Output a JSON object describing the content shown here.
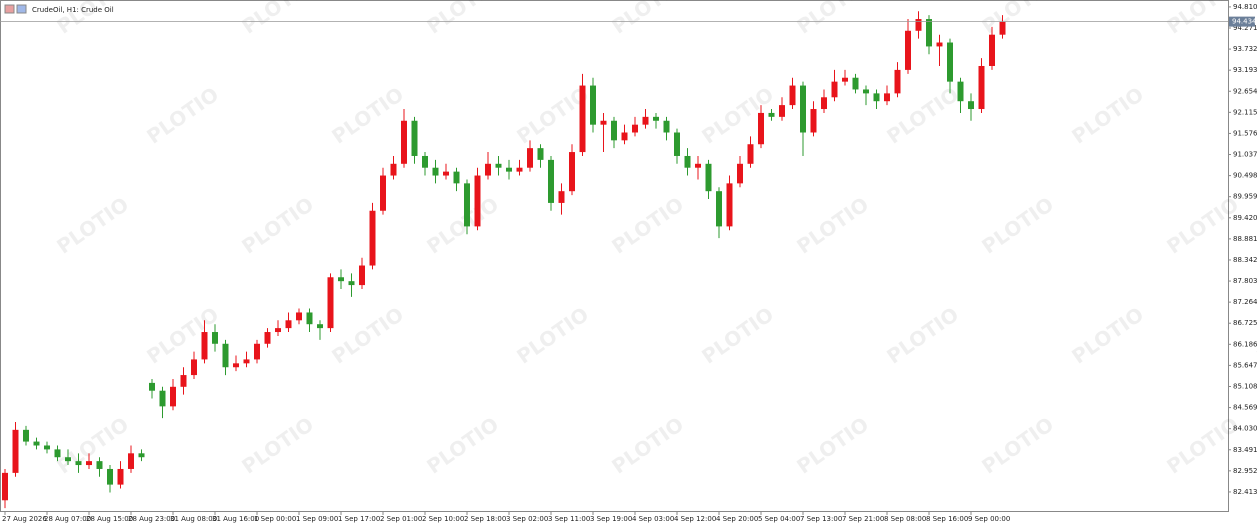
{
  "chart_data": {
    "type": "candlestick",
    "title": "CrudeOil, H1:  Crude Oil",
    "watermark": "PLOTIO",
    "up_color": "#e8141b",
    "down_color": "#2d9a2f",
    "ylim": [
      81.9,
      94.91
    ],
    "yticks": [
      {
        "value": 94.81,
        "label": "94.810"
      },
      94.271,
      93.732,
      93.193,
      92.654,
      92.115,
      91.576,
      91.037,
      90.498,
      89.959,
      {
        "value": 89.42,
        "label": "89.420"
      },
      88.881,
      88.342,
      87.803,
      87.264,
      86.725,
      86.186,
      85.647,
      85.108,
      84.569,
      {
        "value": 84.03,
        "label": "84.030"
      },
      83.491,
      82.952,
      82.413
    ],
    "last_price": 94.434,
    "categories": [
      "27 Aug 2026",
      null,
      null,
      null,
      "28 Aug 07:00",
      null,
      null,
      null,
      "28 Aug 15:00",
      null,
      null,
      null,
      "28 Aug 23:00",
      null,
      null,
      null,
      "31 Aug 08:00",
      null,
      null,
      null,
      "31 Aug 16:00",
      null,
      null,
      null,
      "1 Sep 00:00",
      null,
      null,
      null,
      "1 Sep 09:00",
      null,
      null,
      null,
      "1 Sep 17:00",
      null,
      null,
      null,
      "2 Sep 01:00",
      null,
      null,
      null,
      "2 Sep 10:00",
      null,
      null,
      null,
      "2 Sep 18:00",
      null,
      null,
      null,
      "3 Sep 02:00",
      null,
      null,
      null,
      "3 Sep 11:00",
      null,
      null,
      null,
      "3 Sep 19:00",
      null,
      null,
      null,
      "4 Sep 03:00",
      null,
      null,
      null,
      "4 Sep 12:00",
      null,
      null,
      null,
      "4 Sep 20:00",
      null,
      null,
      null,
      "5 Sep 04:00",
      null,
      null,
      null,
      "7 Sep 13:00",
      null,
      null,
      null,
      "7 Sep 21:00",
      null,
      null,
      null,
      "8 Sep 08:00",
      null,
      null,
      null,
      "8 Sep 16:00",
      null,
      null,
      null,
      "9 Sep 00:00",
      null,
      null,
      null
    ],
    "open": [
      82.2,
      82.9,
      84.0,
      83.7,
      83.6,
      83.5,
      83.3,
      83.2,
      83.1,
      83.2,
      83.0,
      82.6,
      83.0,
      83.4,
      85.2,
      85.0,
      84.6,
      85.1,
      85.4,
      85.8,
      86.5,
      86.2,
      85.6,
      85.7,
      85.8,
      86.2,
      86.5,
      86.6,
      86.8,
      87.0,
      86.7,
      86.6,
      87.9,
      87.8,
      87.7,
      88.2,
      89.6,
      90.5,
      90.8,
      91.9,
      91.0,
      90.7,
      90.5,
      90.6,
      90.3,
      89.2,
      90.5,
      90.8,
      90.7,
      90.6,
      90.7,
      91.2,
      90.9,
      89.8,
      90.1,
      91.1,
      92.8,
      91.8,
      91.9,
      91.4,
      91.6,
      91.8,
      92.0,
      91.9,
      91.6,
      91.0,
      90.7,
      90.8,
      90.1,
      89.2,
      90.3,
      90.8,
      91.3,
      92.1,
      92.0,
      92.3,
      92.8,
      91.6,
      92.2,
      92.5,
      92.9,
      93.0,
      92.7,
      92.6,
      92.4,
      92.6,
      93.2,
      94.2,
      94.5,
      93.8,
      93.9,
      92.9,
      92.4,
      92.2,
      93.3,
      94.1
    ],
    "high": [
      83.0,
      84.2,
      84.1,
      83.8,
      83.7,
      83.6,
      83.5,
      83.4,
      83.4,
      83.3,
      83.1,
      83.2,
      83.6,
      83.5,
      85.3,
      85.1,
      85.3,
      85.6,
      86.0,
      86.8,
      86.7,
      86.3,
      85.9,
      86.0,
      86.3,
      86.6,
      86.8,
      87.0,
      87.1,
      87.1,
      86.8,
      88.0,
      88.1,
      88.0,
      88.4,
      89.8,
      90.7,
      91.0,
      92.2,
      92.0,
      91.1,
      90.9,
      90.8,
      90.7,
      90.4,
      90.7,
      91.1,
      91.0,
      90.9,
      90.9,
      91.4,
      91.3,
      91.0,
      90.3,
      91.3,
      93.1,
      93.0,
      92.1,
      92.0,
      91.8,
      92.0,
      92.2,
      92.1,
      92.0,
      91.7,
      91.2,
      91.0,
      90.9,
      90.2,
      90.5,
      91.0,
      91.5,
      92.3,
      92.2,
      92.5,
      93.0,
      92.9,
      92.4,
      92.7,
      93.2,
      93.2,
      93.1,
      92.8,
      92.7,
      92.8,
      93.4,
      94.5,
      94.7,
      94.6,
      94.1,
      94.0,
      93.0,
      92.6,
      93.5,
      94.3,
      94.6
    ],
    "low": [
      82.0,
      82.8,
      83.6,
      83.5,
      83.4,
      83.2,
      83.1,
      82.9,
      83.0,
      82.8,
      82.4,
      82.5,
      82.9,
      83.2,
      84.8,
      84.3,
      84.5,
      84.9,
      85.3,
      85.7,
      86.0,
      85.4,
      85.5,
      85.6,
      85.7,
      86.1,
      86.4,
      86.5,
      86.7,
      86.5,
      86.3,
      86.5,
      87.6,
      87.4,
      87.6,
      88.1,
      89.5,
      90.4,
      90.7,
      90.8,
      90.5,
      90.3,
      90.4,
      90.1,
      89.0,
      89.1,
      90.4,
      90.5,
      90.4,
      90.5,
      90.6,
      90.7,
      89.6,
      89.5,
      90.0,
      91.0,
      91.6,
      91.1,
      91.2,
      91.3,
      91.5,
      91.7,
      91.7,
      91.4,
      90.8,
      90.5,
      90.4,
      89.9,
      88.9,
      89.1,
      90.2,
      90.7,
      91.2,
      91.9,
      91.9,
      92.2,
      91.0,
      91.5,
      92.1,
      92.4,
      92.8,
      92.6,
      92.3,
      92.2,
      92.3,
      92.5,
      93.1,
      94.0,
      93.6,
      93.3,
      92.6,
      92.1,
      91.9,
      92.1,
      93.2,
      94.0
    ],
    "close": [
      82.9,
      84.0,
      83.7,
      83.6,
      83.5,
      83.3,
      83.2,
      83.1,
      83.2,
      83.0,
      82.6,
      83.0,
      83.4,
      83.3,
      85.0,
      84.6,
      85.1,
      85.4,
      85.8,
      86.5,
      86.2,
      85.6,
      85.7,
      85.8,
      86.2,
      86.5,
      86.6,
      86.8,
      87.0,
      86.7,
      86.6,
      87.9,
      87.8,
      87.7,
      88.2,
      89.6,
      90.5,
      90.8,
      91.9,
      91.0,
      90.7,
      90.5,
      90.6,
      90.3,
      89.2,
      90.5,
      90.8,
      90.7,
      90.6,
      90.7,
      91.2,
      90.9,
      89.8,
      90.1,
      91.1,
      92.8,
      91.8,
      91.9,
      91.4,
      91.6,
      91.8,
      92.0,
      91.9,
      91.6,
      91.0,
      90.7,
      90.8,
      90.1,
      89.2,
      90.3,
      90.8,
      91.3,
      92.1,
      92.0,
      92.3,
      92.8,
      91.6,
      92.2,
      92.5,
      92.9,
      93.0,
      92.7,
      92.6,
      92.4,
      92.6,
      93.2,
      94.2,
      94.5,
      93.8,
      93.9,
      92.9,
      92.4,
      92.2,
      93.3,
      94.1,
      94.434
    ]
  }
}
